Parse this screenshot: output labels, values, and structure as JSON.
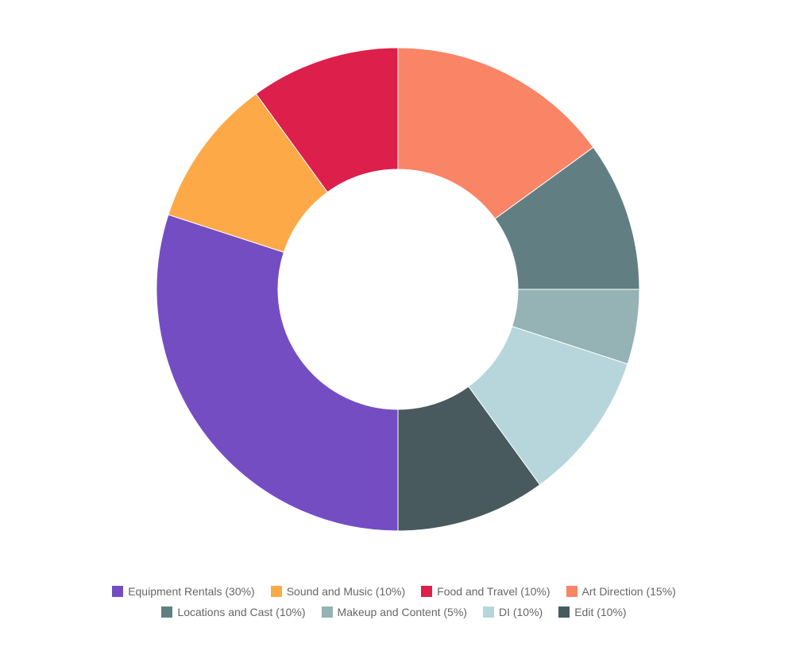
{
  "chart_data": {
    "type": "pie",
    "variant": "donut",
    "title": "",
    "slices": [
      {
        "label": "Art Direction",
        "legend": "Art Direction (15%)",
        "value": 15,
        "color": "#FA8466"
      },
      {
        "label": "Locations and Cast",
        "legend": "Locations and Cast (10%)",
        "value": 10,
        "color": "#617F82"
      },
      {
        "label": "Makeup and Content",
        "legend": "Makeup and Content (5%)",
        "value": 5,
        "color": "#95B2B5"
      },
      {
        "label": "DI",
        "legend": "DI (10%)",
        "value": 10,
        "color": "#B7D6DB"
      },
      {
        "label": "Edit",
        "legend": "Edit (10%)",
        "value": 10,
        "color": "#485A5D"
      },
      {
        "label": "Equipment Rentals",
        "legend": "Equipment Rentals (30%)",
        "value": 30,
        "color": "#744DC3"
      },
      {
        "label": "Sound and Music",
        "legend": "Sound and Music (10%)",
        "value": 10,
        "color": "#FEA948"
      },
      {
        "label": "Food and Travel",
        "legend": "Food and Travel (10%)",
        "value": 10,
        "color": "#DD1F4B"
      }
    ],
    "legend_position": "bottom",
    "legend_rows": [
      [
        "Equipment Rentals (30%)",
        "Sound and Music (10%)",
        "Food and Travel (10%)",
        "Art Direction (15%)"
      ],
      [
        "Locations and Cast (10%)",
        "Makeup and Content (5%)",
        "DI (10%)",
        "Edit (10%)"
      ]
    ]
  }
}
